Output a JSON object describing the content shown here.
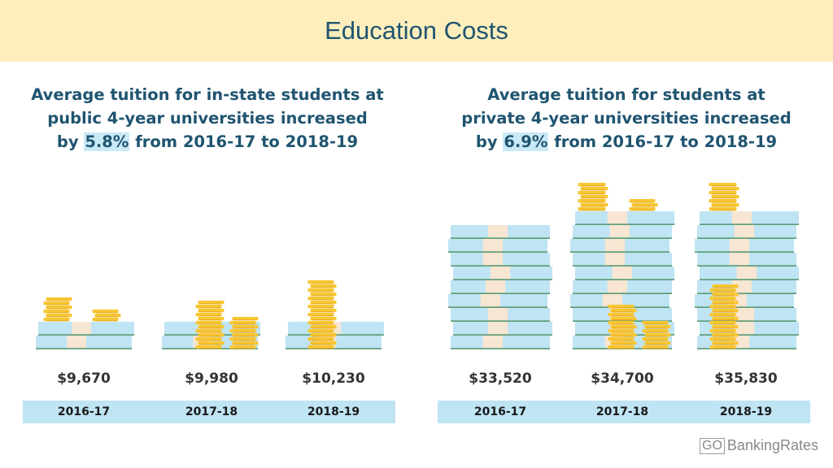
{
  "header": {
    "title": "Education Costs"
  },
  "left": {
    "title_line1": "Average tuition for in-state students at",
    "title_line2": "public 4-year universities increased",
    "title_by": "by",
    "title_pct": "5.8%",
    "title_rest": "from 2016-17 to 2018-19"
  },
  "right": {
    "title_line1": "Average tuition for students at",
    "title_line2": "private 4-year universities increased",
    "title_by": "by",
    "title_pct": "6.9%",
    "title_rest": "from 2016-17 to 2018-19"
  },
  "chart_data": [
    {
      "type": "bar",
      "categories": [
        "2016-17",
        "2017-18",
        "2018-19"
      ],
      "values": [
        9670,
        9980,
        10230
      ],
      "value_labels": [
        "$9,670",
        "$9,980",
        "$10,230"
      ],
      "title": "Average tuition for in-state students at public 4-year universities increased by 5.8% from 2016-17 to 2018-19"
    },
    {
      "type": "bar",
      "categories": [
        "2016-17",
        "2017-18",
        "2018-19"
      ],
      "values": [
        33520,
        34700,
        35830
      ],
      "value_labels": [
        "$33,520",
        "$34,700",
        "$35,830"
      ],
      "title": "Average tuition for students at private 4-year universities increased by 6.9% from 2016-17 to 2018-19"
    }
  ],
  "colors": {
    "banner": "#fdeebc",
    "title": "#1f5470",
    "highlight": "#c9e9f7",
    "bill": "#bfe4f4",
    "band": "#f7e6d2",
    "coin": "#f8c633",
    "year_bar": "#bfe4f4"
  },
  "footer": {
    "brand_box": "GO",
    "brand_text": "BankingRates"
  }
}
